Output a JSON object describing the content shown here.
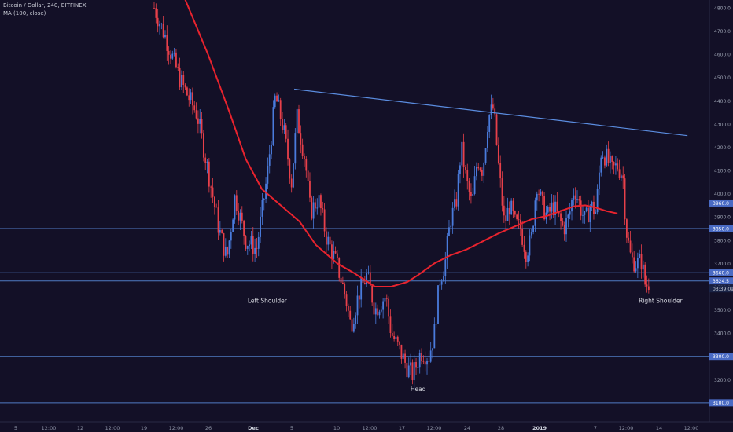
{
  "header": {
    "symbol_line": "Bitcoin / Dollar, 240, BITFINEX",
    "indicator_line": "MA (100, close)"
  },
  "chart_data": {
    "type": "candlestick",
    "title": "Bitcoin / Dollar, 240, BITFINEX",
    "interval": "240",
    "exchange": "BITFINEX",
    "ylim": [
      3050,
      4850
    ],
    "y_tick_labels": [
      "4800.0",
      "4700.0",
      "4600.0",
      "4500.0",
      "4400.0",
      "4300.0",
      "4200.0",
      "4100.0",
      "4000.0",
      "3900.0",
      "3800.0",
      "3700.0",
      "3600.0",
      "3500.0",
      "3400.0",
      "3300.0",
      "3200.0",
      "3100.0"
    ],
    "x_tick_labels": [
      "5",
      "12:00",
      "12",
      "12:00",
      "19",
      "12:00",
      "26",
      "Dec",
      "5",
      "10",
      "12:00",
      "17",
      "12:00",
      "24",
      "28",
      "2019",
      "7",
      "12:00",
      "14",
      "12:00"
    ],
    "price_path": [
      [
        0,
        4800
      ],
      [
        2,
        4680
      ],
      [
        5,
        4480
      ],
      [
        8,
        4340
      ],
      [
        10,
        4100
      ],
      [
        12,
        3850
      ],
      [
        13.5,
        3720
      ],
      [
        15,
        3990
      ],
      [
        17,
        3800
      ],
      [
        19,
        3760
      ],
      [
        21,
        4080
      ],
      [
        22.5,
        4420
      ],
      [
        24,
        4280
      ],
      [
        25.5,
        4050
      ],
      [
        26.5,
        4330
      ],
      [
        28,
        4150
      ],
      [
        29,
        3920
      ],
      [
        30.5,
        3980
      ],
      [
        32,
        3810
      ],
      [
        34,
        3690
      ],
      [
        35.5,
        3560
      ],
      [
        36.5,
        3430
      ],
      [
        38,
        3570
      ],
      [
        39.5,
        3650
      ],
      [
        41,
        3500
      ],
      [
        43,
        3560
      ],
      [
        44,
        3400
      ],
      [
        45.5,
        3330
      ],
      [
        47,
        3250
      ],
      [
        48,
        3220
      ],
      [
        49.5,
        3320
      ],
      [
        51,
        3300
      ],
      [
        52,
        3400
      ],
      [
        53,
        3630
      ],
      [
        54,
        3700
      ],
      [
        55,
        3890
      ],
      [
        56,
        3950
      ],
      [
        57,
        4200
      ],
      [
        58,
        4050
      ],
      [
        59,
        3950
      ],
      [
        60,
        4150
      ],
      [
        61,
        4100
      ],
      [
        62,
        4330
      ],
      [
        63,
        4370
      ],
      [
        64,
        4100
      ],
      [
        65,
        3870
      ],
      [
        66,
        3950
      ],
      [
        67,
        3870
      ],
      [
        68,
        3850
      ],
      [
        69,
        3750
      ],
      [
        70,
        3800
      ],
      [
        71,
        4050
      ],
      [
        72,
        3950
      ],
      [
        73,
        3900
      ],
      [
        74,
        3950
      ],
      [
        76,
        3850
      ],
      [
        77,
        3900
      ],
      [
        78,
        4030
      ],
      [
        79,
        3950
      ],
      [
        80,
        3880
      ],
      [
        81,
        3950
      ],
      [
        82,
        3920
      ],
      [
        83,
        4190
      ],
      [
        84,
        4150
      ],
      [
        85,
        4100
      ],
      [
        86,
        4120
      ],
      [
        87,
        4080
      ],
      [
        87.6,
        3850
      ],
      [
        88.5,
        3720
      ],
      [
        89.5,
        3700
      ],
      [
        90.5,
        3710
      ],
      [
        91.2,
        3600
      ],
      [
        92,
        3625
      ]
    ],
    "series": [
      {
        "name": "MA (100, close)",
        "color": "#e8232e",
        "points": [
          [
            5.5,
            4850
          ],
          [
            10,
            4600
          ],
          [
            14,
            4350
          ],
          [
            17,
            4150
          ],
          [
            20,
            4020
          ],
          [
            24,
            3940
          ],
          [
            27,
            3880
          ],
          [
            30,
            3780
          ],
          [
            34,
            3700
          ],
          [
            37,
            3660
          ],
          [
            39,
            3630
          ],
          [
            41,
            3600
          ],
          [
            44,
            3600
          ],
          [
            47,
            3620
          ],
          [
            49,
            3650
          ],
          [
            52,
            3700
          ],
          [
            55,
            3735
          ],
          [
            58,
            3760
          ],
          [
            61,
            3795
          ],
          [
            64,
            3830
          ],
          [
            67,
            3860
          ],
          [
            70,
            3890
          ],
          [
            73,
            3905
          ],
          [
            76,
            3930
          ],
          [
            78,
            3946
          ],
          [
            80,
            3950
          ],
          [
            82,
            3940
          ],
          [
            84,
            3925
          ],
          [
            86,
            3915
          ]
        ]
      }
    ],
    "horizontal_levels": [
      {
        "value": 3960.0,
        "label": "3960.0"
      },
      {
        "value": 3850.0,
        "label": "3850.0"
      },
      {
        "value": 3660.0,
        "label": "3660.0"
      },
      {
        "value": 3624.5,
        "label": "3624.5"
      },
      {
        "value": 3300.0,
        "label": "3300.0"
      },
      {
        "value": 3100.0,
        "label": "3100.0"
      }
    ],
    "trendline": {
      "from": [
        26,
        4450
      ],
      "to": [
        99,
        4250
      ],
      "color": "#5b8de0"
    },
    "countdown": "03:39:09",
    "annotations": [
      {
        "text": "Left Shoulder",
        "x": 21,
        "y": 3530
      },
      {
        "text": "Head",
        "x": 49,
        "y": 3150
      },
      {
        "text": "Right Shoulder",
        "x": 94,
        "y": 3530
      }
    ],
    "colors": {
      "background": "#131027",
      "up": "#4a7bdc",
      "down": "#e8404a",
      "level_line": "#5b8de0",
      "label_box": "#4a6bc4"
    }
  }
}
